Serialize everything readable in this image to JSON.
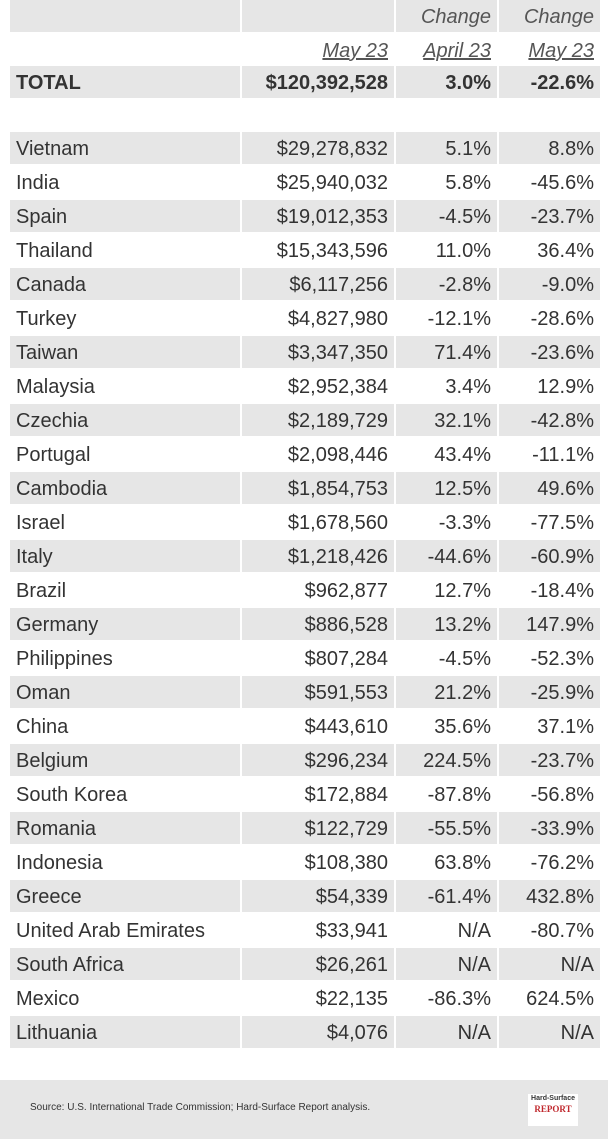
{
  "header": {
    "change_labels": [
      "Change",
      "Change"
    ],
    "periods": [
      "May 23",
      "April 23",
      "May 23"
    ]
  },
  "total": [
    "TOTAL",
    "$120,392,528",
    "3.0%",
    "-22.6%"
  ],
  "rows": [
    [
      "Vietnam",
      "$29,278,832",
      "5.1%",
      "8.8%"
    ],
    [
      "India",
      "$25,940,032",
      "5.8%",
      "-45.6%"
    ],
    [
      "Spain",
      "$19,012,353",
      "-4.5%",
      "-23.7%"
    ],
    [
      "Thailand",
      "$15,343,596",
      "11.0%",
      "36.4%"
    ],
    [
      "Canada",
      "$6,117,256",
      "-2.8%",
      "-9.0%"
    ],
    [
      "Turkey",
      "$4,827,980",
      "-12.1%",
      "-28.6%"
    ],
    [
      "Taiwan",
      "$3,347,350",
      "71.4%",
      "-23.6%"
    ],
    [
      "Malaysia",
      "$2,952,384",
      "3.4%",
      "12.9%"
    ],
    [
      "Czechia",
      "$2,189,729",
      "32.1%",
      "-42.8%"
    ],
    [
      "Portugal",
      "$2,098,446",
      "43.4%",
      "-11.1%"
    ],
    [
      "Cambodia",
      "$1,854,753",
      "12.5%",
      "49.6%"
    ],
    [
      "Israel",
      "$1,678,560",
      "-3.3%",
      "-77.5%"
    ],
    [
      "Italy",
      "$1,218,426",
      "-44.6%",
      "-60.9%"
    ],
    [
      "Brazil",
      "$962,877",
      "12.7%",
      "-18.4%"
    ],
    [
      "Germany",
      "$886,528",
      "13.2%",
      "147.9%"
    ],
    [
      "Philippines",
      "$807,284",
      "-4.5%",
      "-52.3%"
    ],
    [
      "Oman",
      "$591,553",
      "21.2%",
      "-25.9%"
    ],
    [
      "China",
      "$443,610",
      "35.6%",
      "37.1%"
    ],
    [
      "Belgium",
      "$296,234",
      "224.5%",
      "-23.7%"
    ],
    [
      "South Korea",
      "$172,884",
      "-87.8%",
      "-56.8%"
    ],
    [
      "Romania",
      "$122,729",
      "-55.5%",
      "-33.9%"
    ],
    [
      "Indonesia",
      "$108,380",
      "63.8%",
      "-76.2%"
    ],
    [
      "Greece",
      "$54,339",
      "-61.4%",
      "432.8%"
    ],
    [
      "United Arab Emirates",
      "$33,941",
      "N/A",
      "-80.7%"
    ],
    [
      "South Africa",
      "$26,261",
      "N/A",
      "N/A"
    ],
    [
      "Mexico",
      "$22,135",
      "-86.3%",
      "624.5%"
    ],
    [
      "Lithuania",
      "$4,076",
      "N/A",
      "N/A"
    ]
  ],
  "footer": {
    "source": "Source: U.S. International Trade Commission; Hard-Surface Report analysis.",
    "logo": [
      "Hard-Surface",
      "REPORT"
    ]
  }
}
